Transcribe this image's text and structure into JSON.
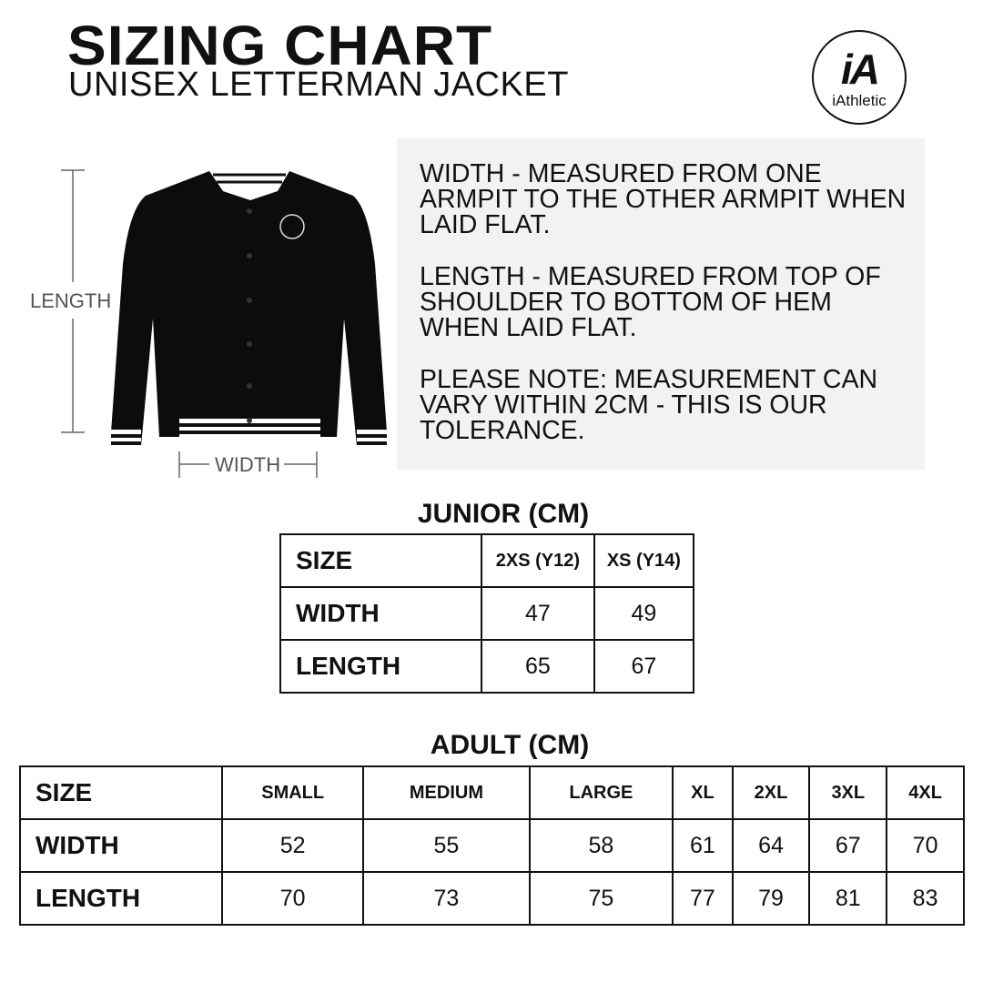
{
  "header": {
    "title": "SIZING CHART",
    "subtitle": "UNISEX LETTERMAN JACKET"
  },
  "logo": {
    "mark": "iA",
    "word": "iAthletic"
  },
  "diagram": {
    "length_label": "LENGTH",
    "width_label": "WIDTH"
  },
  "info": [
    "WIDTH - MEASURED FROM ONE\nARMPIT TO THE OTHER ARMPIT WHEN\nLAID FLAT.",
    "LENGTH - MEASURED FROM TOP OF\nSHOULDER TO BOTTOM OF HEM\nWHEN LAID FLAT.",
    "PLEASE NOTE: MEASUREMENT CAN\nVARY WITHIN 2CM - THIS IS OUR\nTOLERANCE."
  ],
  "junior": {
    "title": "JUNIOR (CM)",
    "header": [
      "SIZE",
      "2XS (Y12)",
      "XS (Y14)"
    ],
    "rows": [
      [
        "WIDTH",
        "47",
        "49"
      ],
      [
        "LENGTH",
        "65",
        "67"
      ]
    ]
  },
  "adult": {
    "title": "ADULT (CM)",
    "header": [
      "SIZE",
      "SMALL",
      "MEDIUM",
      "LARGE",
      "XL",
      "2XL",
      "3XL",
      "4XL"
    ],
    "rows": [
      [
        "WIDTH",
        "52",
        "55",
        "58",
        "61",
        "64",
        "67",
        "70"
      ],
      [
        "LENGTH",
        "70",
        "73",
        "75",
        "77",
        "79",
        "81",
        "83"
      ]
    ]
  }
}
